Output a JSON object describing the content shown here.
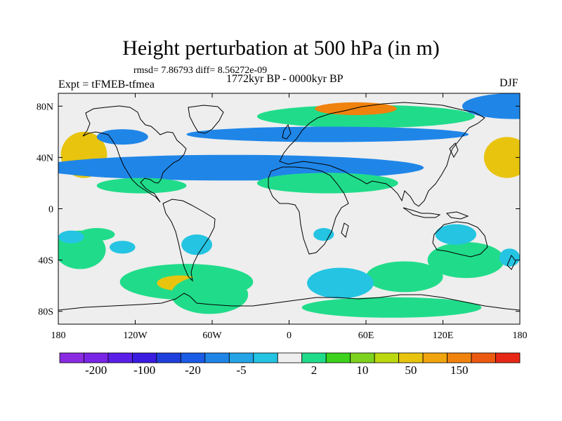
{
  "header": {
    "title": "Height perturbation at 500 hPa (in m)",
    "stats": "rmsd= 7.86793  diff= 8.56272e-09",
    "period": "1772kyr BP - 0000kyr BP",
    "experiment": "Expt = tFMEB-tfmea",
    "season": "DJF"
  },
  "chart_data": {
    "type": "heatmap",
    "title": "Height perturbation at 500 hPa (in m)",
    "variable": "500 hPa geopotential height perturbation",
    "units": "m",
    "projection": "cylindrical equidistant",
    "xlabel": "",
    "ylabel": "",
    "xlim": [
      -180,
      180
    ],
    "ylim": [
      -90,
      90
    ],
    "x_ticks": [
      {
        "value": -180,
        "label": "180"
      },
      {
        "value": -120,
        "label": "120W"
      },
      {
        "value": -60,
        "label": "60W"
      },
      {
        "value": 0,
        "label": "0"
      },
      {
        "value": 60,
        "label": "60E"
      },
      {
        "value": 120,
        "label": "120E"
      },
      {
        "value": 180,
        "label": "180"
      }
    ],
    "y_ticks": [
      {
        "value": 80,
        "label": "80N"
      },
      {
        "value": 40,
        "label": "40N"
      },
      {
        "value": 0,
        "label": "0"
      },
      {
        "value": -40,
        "label": "40S"
      },
      {
        "value": -80,
        "label": "80S"
      }
    ],
    "colorbar": {
      "colors": [
        "#8a2be2",
        "#7a24e6",
        "#5a1ee8",
        "#3a1ce0",
        "#1f3fdc",
        "#1a5ce6",
        "#1f86e8",
        "#24a4e6",
        "#24c4e2",
        "#eeeeee",
        "#20dc8a",
        "#3cd21e",
        "#7cd21e",
        "#bcd80e",
        "#e8c40e",
        "#f0a40e",
        "#f0820e",
        "#ec5a12",
        "#e82816"
      ],
      "tick_labels": [
        "-200",
        "-100",
        "-20",
        "-5",
        "2",
        "10",
        "50",
        "150"
      ]
    },
    "regions": [
      {
        "lon": 60,
        "lat": 72,
        "rx": 85,
        "ry": 9,
        "value": 5
      },
      {
        "lon": 52,
        "lat": 78,
        "rx": 32,
        "ry": 5,
        "value": 100
      },
      {
        "lon": -160,
        "lat": 42,
        "rx": 18,
        "ry": 18,
        "value": 60
      },
      {
        "lon": 170,
        "lat": 40,
        "rx": 18,
        "ry": 16,
        "value": 60
      },
      {
        "lon": -45,
        "lat": 32,
        "rx": 150,
        "ry": 10,
        "value": -20
      },
      {
        "lon": 30,
        "lat": 58,
        "rx": 110,
        "ry": 6,
        "value": -20
      },
      {
        "lon": -130,
        "lat": 56,
        "rx": 20,
        "ry": 6,
        "value": -20
      },
      {
        "lon": 175,
        "lat": 80,
        "rx": 40,
        "ry": 10,
        "value": -20
      },
      {
        "lon": 30,
        "lat": 20,
        "rx": 55,
        "ry": 8,
        "value": 5
      },
      {
        "lon": -115,
        "lat": 18,
        "rx": 35,
        "ry": 6,
        "value": 5
      },
      {
        "lon": -150,
        "lat": -20,
        "rx": 14,
        "ry": 5,
        "value": 5
      },
      {
        "lon": -163,
        "lat": -32,
        "rx": 20,
        "ry": 15,
        "value": 5
      },
      {
        "lon": -80,
        "lat": -57,
        "rx": 52,
        "ry": 14,
        "value": 5
      },
      {
        "lon": -85,
        "lat": -58,
        "rx": 18,
        "ry": 6,
        "value": 50
      },
      {
        "lon": -62,
        "lat": -67,
        "rx": 30,
        "ry": 15,
        "value": 5
      },
      {
        "lon": 90,
        "lat": -53,
        "rx": 30,
        "ry": 12,
        "value": 5
      },
      {
        "lon": 80,
        "lat": -77,
        "rx": 70,
        "ry": 8,
        "value": 5
      },
      {
        "lon": 138,
        "lat": -40,
        "rx": 30,
        "ry": 14,
        "value": 5
      },
      {
        "lon": -170,
        "lat": -22,
        "rx": 10,
        "ry": 5,
        "value": -5
      },
      {
        "lon": -130,
        "lat": -30,
        "rx": 10,
        "ry": 5,
        "value": -5
      },
      {
        "lon": -72,
        "lat": -28,
        "rx": 12,
        "ry": 8,
        "value": -5
      },
      {
        "lon": 27,
        "lat": -20,
        "rx": 8,
        "ry": 5,
        "value": -5
      },
      {
        "lon": 40,
        "lat": -58,
        "rx": 26,
        "ry": 12,
        "value": -5
      },
      {
        "lon": 130,
        "lat": -20,
        "rx": 16,
        "ry": 8,
        "value": -5
      },
      {
        "lon": 172,
        "lat": -38,
        "rx": 8,
        "ry": 7,
        "value": -5
      }
    ]
  }
}
